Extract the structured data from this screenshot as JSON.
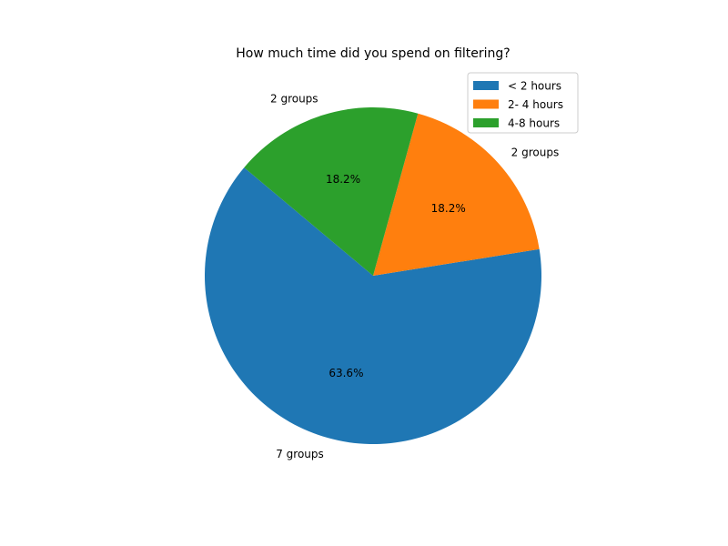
{
  "chart_data": {
    "type": "pie",
    "title": "How much time did you spend on filtering?",
    "categories": [
      "< 2 hours",
      "2- 4 hours",
      "4-8 hours"
    ],
    "values": [
      7,
      2,
      2
    ],
    "slice_labels": [
      "7 groups",
      "2 groups",
      "2 groups"
    ],
    "percent_labels": [
      "63.6%",
      "18.2%",
      "18.2%"
    ],
    "colors": [
      "#1f77b4",
      "#ff7f0e",
      "#2ca02c"
    ],
    "start_angle_deg": 140,
    "legend_placement": "top-right"
  }
}
